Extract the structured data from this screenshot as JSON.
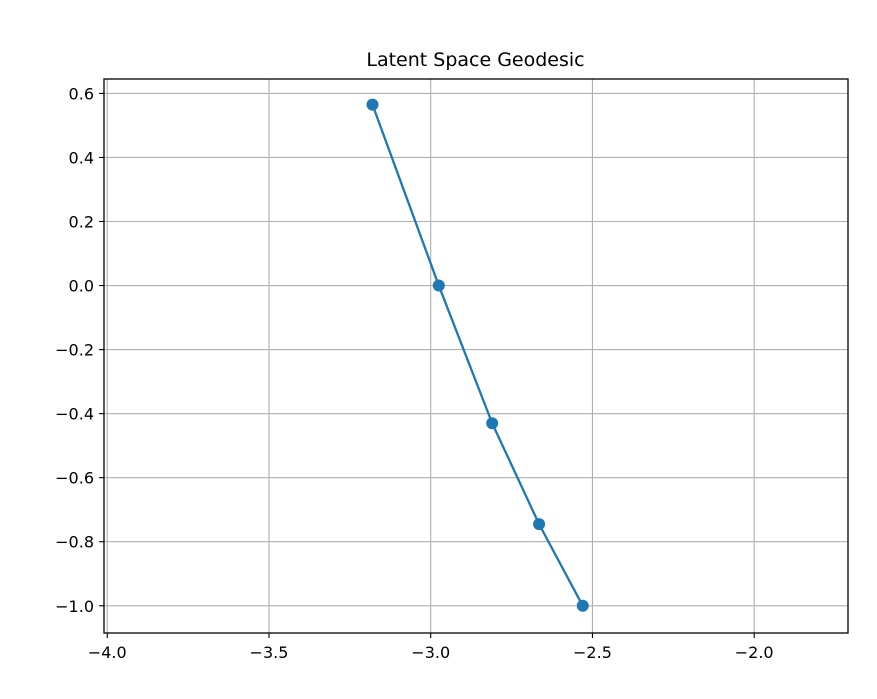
{
  "chart_data": {
    "type": "line",
    "title": "Latent Space Geodesic",
    "xlabel": "",
    "ylabel": "",
    "xlim": [
      -4.01,
      -1.71
    ],
    "ylim": [
      -1.085,
      0.645
    ],
    "x_ticks": [
      -4.0,
      -3.5,
      -3.0,
      -2.5,
      -2.0
    ],
    "x_tick_labels": [
      "−4.0",
      "−3.5",
      "−3.0",
      "−2.5",
      "−2.0"
    ],
    "y_ticks": [
      0.6,
      0.4,
      0.2,
      0.0,
      -0.2,
      -0.4,
      -0.6,
      -0.8,
      -1.0
    ],
    "y_tick_labels": [
      "0.6",
      "0.4",
      "0.2",
      "0.0",
      "−0.2",
      "−0.4",
      "−0.6",
      "−0.8",
      "−1.0"
    ],
    "grid": true,
    "series": [
      {
        "color": "#1f77b4",
        "marker": "circle",
        "x": [
          -3.18,
          -2.975,
          -2.81,
          -2.665,
          -2.53
        ],
        "y": [
          0.565,
          0.0,
          -0.43,
          -0.745,
          -1.0
        ]
      }
    ]
  }
}
